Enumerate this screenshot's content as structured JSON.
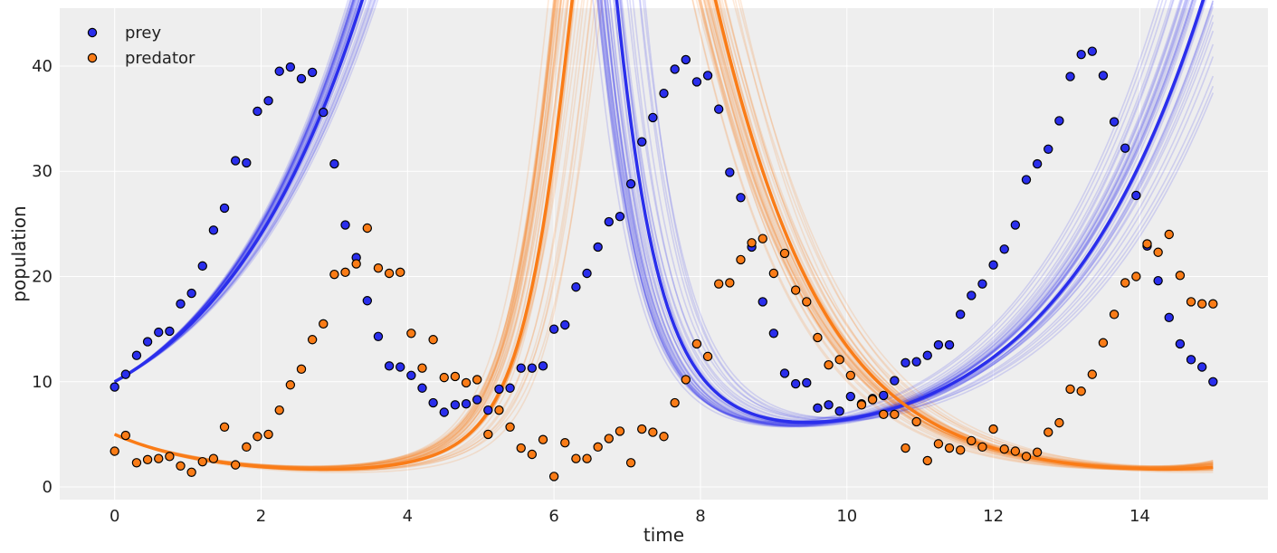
{
  "chart_data": {
    "type": "scatter",
    "title": "",
    "xlabel": "time",
    "ylabel": "population",
    "xlim": [
      -0.75,
      15.75
    ],
    "ylim": [
      -1.2,
      45.5
    ],
    "xticks": [
      0,
      2,
      4,
      6,
      8,
      10,
      12,
      14
    ],
    "yticks": [
      0,
      10,
      20,
      30,
      40
    ],
    "grid": true,
    "legend_position": "top-left",
    "colors": {
      "background": "#eeeeee",
      "grid": "#ffffff",
      "prey": "#2a2eec",
      "predator": "#fa7c17",
      "marker_edge": "#000000"
    },
    "model": {
      "dt": 0.05,
      "prey0": 10.0,
      "predator0": 5.0,
      "mean_params": {
        "alpha": 0.52,
        "beta": 0.0265,
        "gamma": 0.85,
        "delta": 0.0236
      },
      "sample_count": 40,
      "sample_jitter": 0.05,
      "sample_opacity": 0.16
    },
    "series": [
      {
        "name": "prey",
        "color": "#2a2eec",
        "x": [
          0,
          0.15,
          0.3,
          0.45,
          0.6,
          0.75,
          0.9,
          1.05,
          1.2,
          1.35,
          1.5,
          1.65,
          1.8,
          1.95,
          2.1,
          2.25,
          2.4,
          2.55,
          2.7,
          2.85,
          3,
          3.15,
          3.3,
          3.45,
          3.6,
          3.75,
          3.9,
          4.05,
          4.2,
          4.35,
          4.5,
          4.65,
          4.8,
          4.95,
          5.1,
          5.25,
          5.4,
          5.55,
          5.7,
          5.85,
          6,
          6.15,
          6.3,
          6.45,
          6.6,
          6.75,
          6.9,
          7.05,
          7.2,
          7.35,
          7.5,
          7.65,
          7.8,
          7.95,
          8.1,
          8.25,
          8.4,
          8.55,
          8.7,
          8.85,
          9,
          9.15,
          9.3,
          9.45,
          9.6,
          9.75,
          9.9,
          10.05,
          10.2,
          10.35,
          10.5,
          10.65,
          10.8,
          10.95,
          11.1,
          11.25,
          11.4,
          11.55,
          11.7,
          11.85,
          12,
          12.15,
          12.3,
          12.45,
          12.6,
          12.75,
          12.9,
          13.05,
          13.2,
          13.35,
          13.5,
          13.65,
          13.8,
          13.95,
          14.1,
          14.25,
          14.4,
          14.55,
          14.7,
          14.85,
          15
        ],
        "values": [
          9.5,
          10.7,
          12.5,
          13.8,
          14.7,
          14.8,
          17.4,
          18.4,
          21.0,
          24.4,
          26.5,
          31.0,
          30.8,
          35.7,
          36.7,
          39.5,
          39.9,
          38.8,
          39.4,
          35.6,
          30.7,
          24.9,
          21.8,
          17.7,
          14.3,
          11.5,
          11.4,
          10.6,
          9.4,
          8.0,
          7.1,
          7.8,
          7.9,
          8.3,
          7.3,
          9.3,
          9.4,
          11.3,
          11.3,
          11.5,
          15.0,
          15.4,
          19.0,
          20.3,
          22.8,
          25.2,
          25.7,
          28.8,
          32.8,
          35.1,
          37.4,
          39.7,
          40.6,
          38.5,
          39.1,
          35.9,
          29.9,
          27.5,
          22.8,
          17.6,
          14.6,
          10.8,
          9.8,
          9.9,
          7.5,
          7.8,
          7.2,
          8.6,
          7.9,
          8.4,
          8.7,
          10.1,
          11.8,
          11.9,
          12.5,
          13.5,
          13.5,
          16.4,
          18.2,
          19.3,
          21.1,
          22.6,
          24.9,
          29.2,
          30.7,
          32.1,
          34.8,
          39.0,
          41.1,
          41.4,
          39.1,
          34.7,
          32.2,
          27.7,
          22.9,
          19.6,
          16.1,
          13.6,
          12.1,
          11.4,
          10.0
        ]
      },
      {
        "name": "predator",
        "color": "#fa7c17",
        "x": [
          0,
          0.15,
          0.3,
          0.45,
          0.6,
          0.75,
          0.9,
          1.05,
          1.2,
          1.35,
          1.5,
          1.65,
          1.8,
          1.95,
          2.1,
          2.25,
          2.4,
          2.55,
          2.7,
          2.85,
          3,
          3.15,
          3.3,
          3.45,
          3.6,
          3.75,
          3.9,
          4.05,
          4.2,
          4.35,
          4.5,
          4.65,
          4.8,
          4.95,
          5.1,
          5.25,
          5.4,
          5.55,
          5.7,
          5.85,
          6,
          6.15,
          6.3,
          6.45,
          6.6,
          6.75,
          6.9,
          7.05,
          7.2,
          7.35,
          7.5,
          7.65,
          7.8,
          7.95,
          8.1,
          8.25,
          8.4,
          8.55,
          8.7,
          8.85,
          9,
          9.15,
          9.3,
          9.45,
          9.6,
          9.75,
          9.9,
          10.05,
          10.2,
          10.35,
          10.5,
          10.65,
          10.8,
          10.95,
          11.1,
          11.25,
          11.4,
          11.55,
          11.7,
          11.85,
          12,
          12.15,
          12.3,
          12.45,
          12.6,
          12.75,
          12.9,
          13.05,
          13.2,
          13.35,
          13.5,
          13.65,
          13.8,
          13.95,
          14.1,
          14.25,
          14.4,
          14.55,
          14.7,
          14.85,
          15
        ],
        "values": [
          3.4,
          4.9,
          2.3,
          2.6,
          2.7,
          2.9,
          2.0,
          1.4,
          2.4,
          2.7,
          5.7,
          2.1,
          3.8,
          4.8,
          5.0,
          7.3,
          9.7,
          11.2,
          14.0,
          15.5,
          20.2,
          20.4,
          21.2,
          24.6,
          20.8,
          20.3,
          20.4,
          14.6,
          11.3,
          14.0,
          10.4,
          10.5,
          9.9,
          10.2,
          5.0,
          7.3,
          5.7,
          3.7,
          3.1,
          4.5,
          1.0,
          4.2,
          2.7,
          2.7,
          3.8,
          4.6,
          5.3,
          2.3,
          5.5,
          5.2,
          4.8,
          8.0,
          10.2,
          13.6,
          12.4,
          19.3,
          19.4,
          21.6,
          23.2,
          23.6,
          20.3,
          22.2,
          18.7,
          17.6,
          14.2,
          11.6,
          12.1,
          10.6,
          7.8,
          8.3,
          6.9,
          6.9,
          3.7,
          6.2,
          2.5,
          4.1,
          3.7,
          3.5,
          4.4,
          3.8,
          5.5,
          3.6,
          3.4,
          2.9,
          3.3,
          5.2,
          6.1,
          9.3,
          9.1,
          10.7,
          13.7,
          16.4,
          19.4,
          20.0,
          23.1,
          22.3,
          24.0,
          20.1,
          17.6,
          17.4,
          17.4
        ]
      }
    ]
  }
}
